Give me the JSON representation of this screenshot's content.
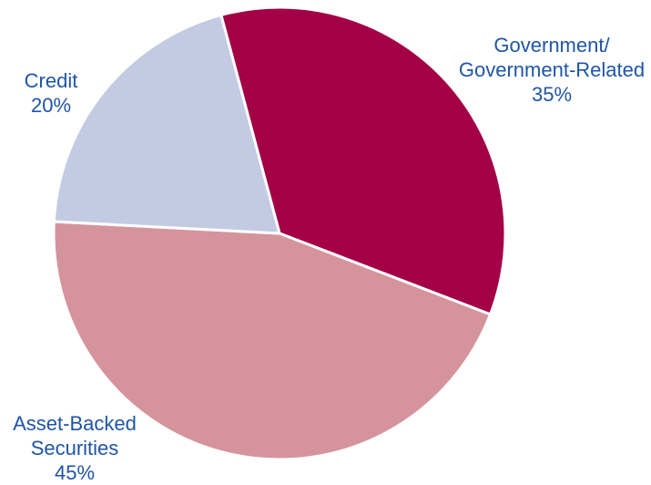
{
  "chart_data": {
    "type": "pie",
    "slices": [
      {
        "label_lines": [
          "Government/",
          "Government-Related"
        ],
        "value": 35,
        "value_label": "35%",
        "color": "#a30046"
      },
      {
        "label_lines": [
          "Asset-Backed",
          "Securities"
        ],
        "value": 45,
        "value_label": "45%",
        "color": "#d5949c"
      },
      {
        "label_lines": [
          "Credit"
        ],
        "value": 20,
        "value_label": "20%",
        "color": "#c3cbe3"
      }
    ],
    "start_angle_deg_clockwise_from_top": -15,
    "direction": "clockwise",
    "label_color": "#1f55a6",
    "legend": "none"
  }
}
